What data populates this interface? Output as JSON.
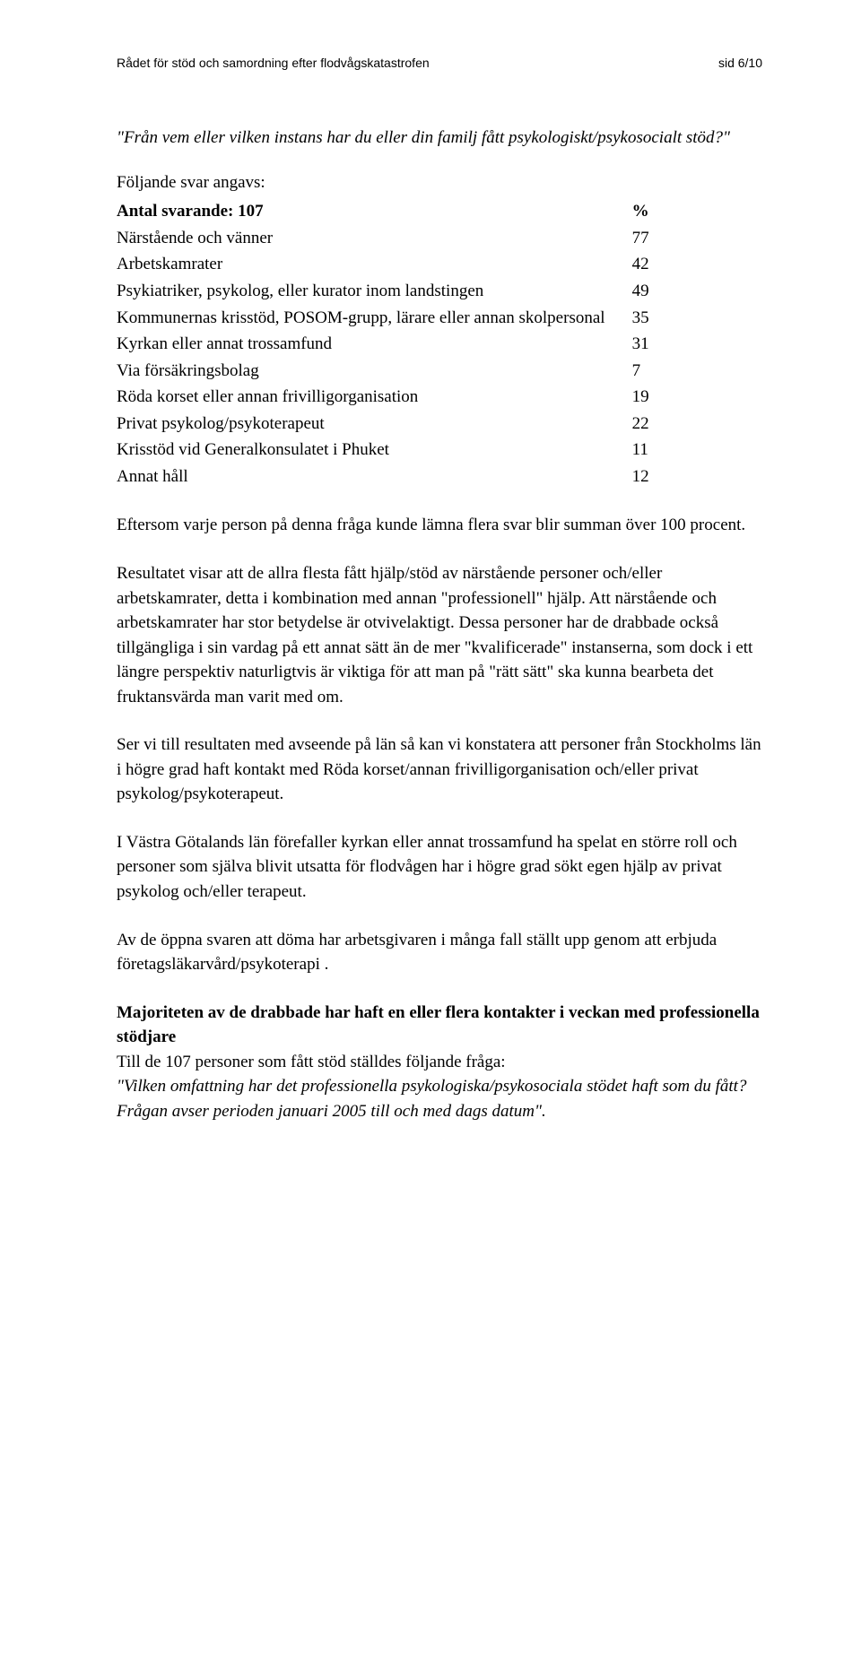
{
  "header": {
    "left": "Rådet för stöd och samordning efter flodvågskatastrofen",
    "right": "sid 6/10"
  },
  "question": "\"Från vem eller vilken instans har du eller din familj fått psykologiskt/psykosocialt stöd?\"",
  "table_intro": "Följande svar angavs:",
  "table": {
    "header_label": "Antal svarande: 107",
    "header_val": "%",
    "rows": [
      {
        "label": "Närstående och vänner",
        "val": "77"
      },
      {
        "label": "Arbetskamrater",
        "val": "42"
      },
      {
        "label": "Psykiatriker, psykolog, eller kurator inom landstingen",
        "val": "49"
      },
      {
        "label": "Kommunernas krisstöd, POSOM-grupp, lärare eller annan skolpersonal",
        "val": "35"
      },
      {
        "label": "Kyrkan eller annat trossamfund",
        "val": "31"
      },
      {
        "label": "Via försäkringsbolag",
        "val": "7"
      },
      {
        "label": "Röda korset eller annan frivilligorganisation",
        "val": "19"
      },
      {
        "label": "Privat psykolog/psykoterapeut",
        "val": "22"
      },
      {
        "label": "Krisstöd vid Generalkonsulatet i Phuket",
        "val": "11"
      },
      {
        "label": "Annat håll",
        "val": "12"
      }
    ]
  },
  "paragraphs": {
    "p1": "Eftersom varje person på denna fråga kunde lämna flera svar blir summan över 100 procent.",
    "p2": "Resultatet visar att de allra flesta fått hjälp/stöd av närstående personer och/eller arbetskamrater, detta i kombination med annan \"professionell\" hjälp. Att närstående och arbetskamrater har stor betydelse är otvivelaktigt. Dessa personer har de drabbade också tillgängliga i sin vardag på ett annat sätt än de mer \"kvalificerade\" instanserna, som dock i ett längre perspektiv naturligtvis är viktiga för att man på \"rätt sätt\" ska kunna bearbeta det fruktansvärda man varit med om.",
    "p3": "Ser vi till resultaten med avseende på län så kan vi konstatera att personer från Stockholms län i högre grad haft kontakt med Röda korset/annan frivilligorganisation och/eller privat psykolog/psykoterapeut.",
    "p4": "I Västra Götalands län förefaller kyrkan eller annat trossamfund ha spelat en större roll och personer som själva blivit utsatta för flodvågen har i högre grad sökt egen hjälp av privat psykolog och/eller terapeut.",
    "p5": "Av de öppna svaren att döma har arbetsgivaren i många fall ställt upp genom att erbjuda företagsläkarvård/psykoterapi .",
    "section_heading": "Majoriteten av de drabbade har haft en eller flera kontakter i veckan med professionella stödjare",
    "follow_plain": "Till de 107 personer som fått stöd ställdes följande fråga:",
    "follow_italic": "\"Vilken omfattning har det professionella psykologiska/psykosociala stödet haft som du fått? Frågan avser perioden januari 2005 till och med dags datum\"."
  }
}
